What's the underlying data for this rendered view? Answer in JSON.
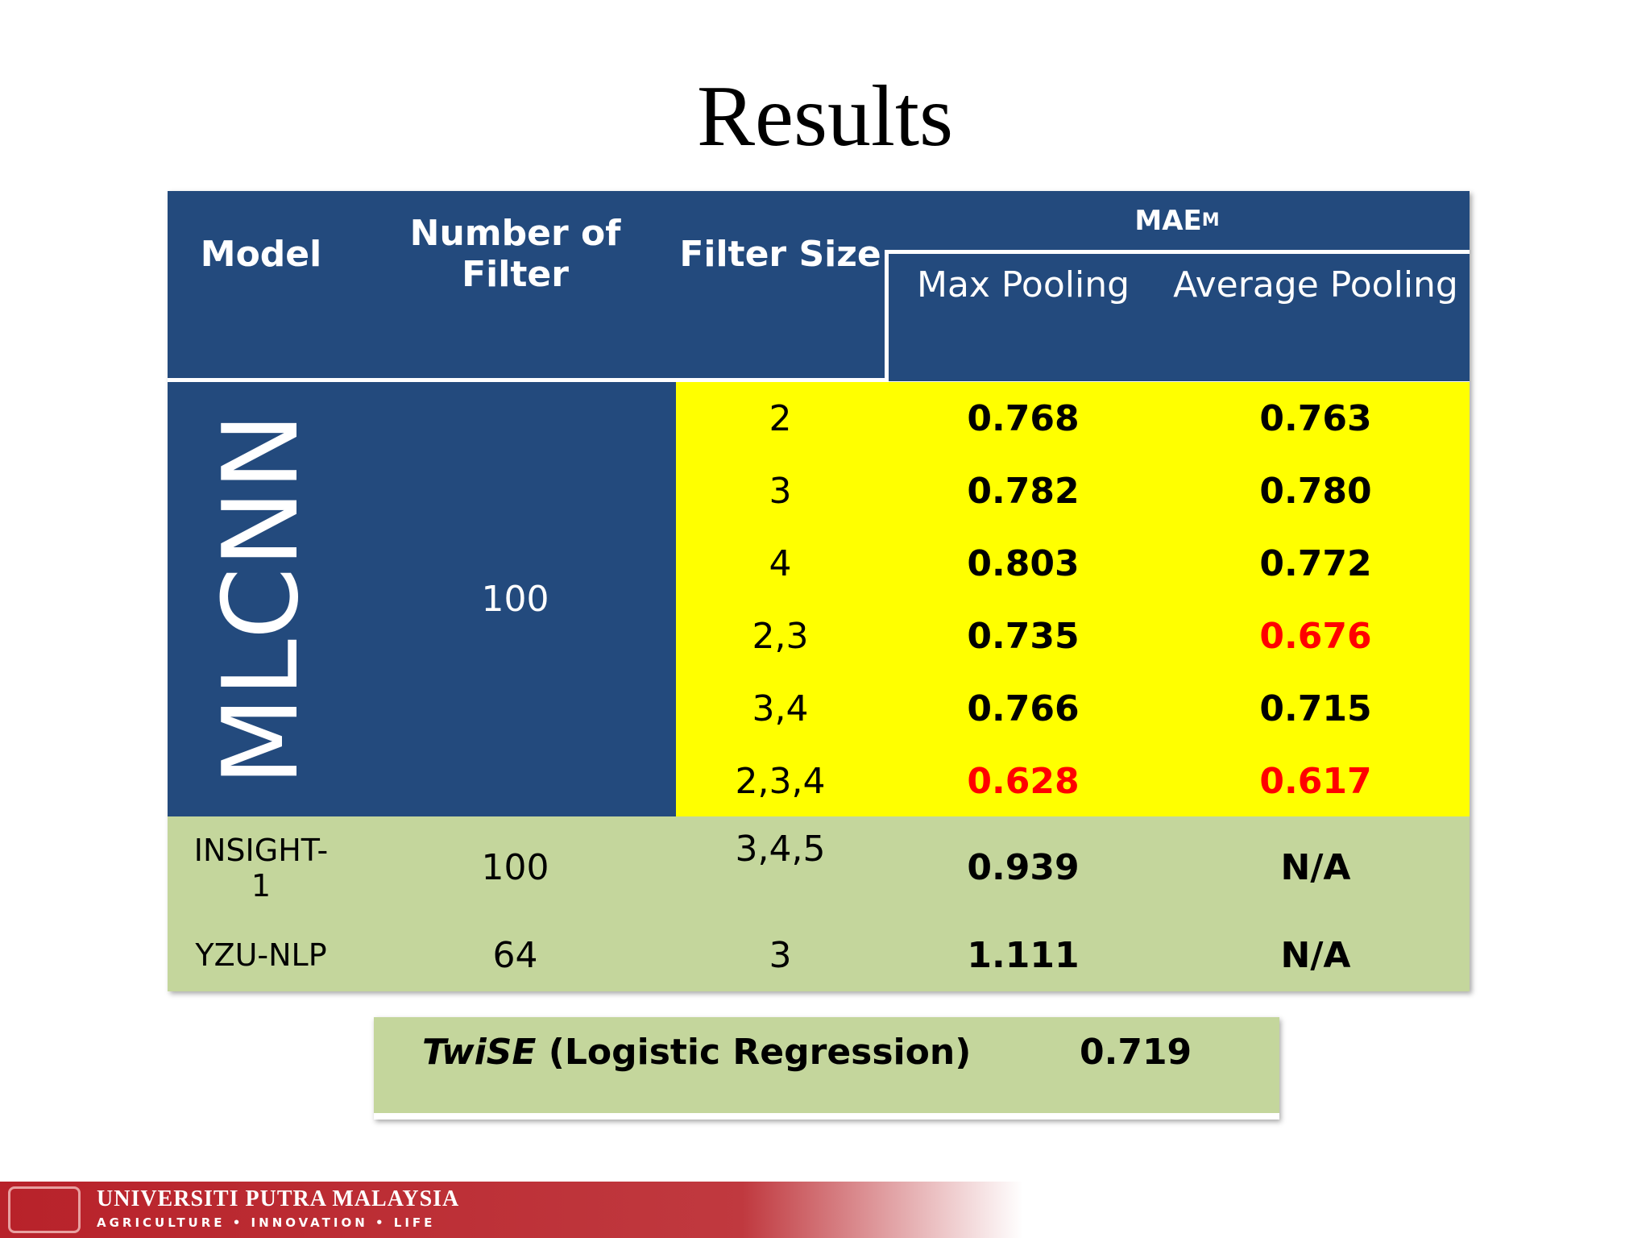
{
  "title": "Results",
  "table": {
    "header": {
      "model": "Model",
      "filters": "Number of Filter",
      "size": "Filter Size",
      "mae": "MAE",
      "mae_sup": "M",
      "max": "Max Pooling",
      "avg": "Average Pooling"
    },
    "mlcnn": {
      "label": "MLCNN",
      "filters": "100",
      "rows": [
        {
          "size": "2",
          "max": "0.768",
          "avg": "0.763",
          "max_red": false,
          "avg_red": false
        },
        {
          "size": "3",
          "max": "0.782",
          "avg": "0.780",
          "max_red": false,
          "avg_red": false
        },
        {
          "size": "4",
          "max": "0.803",
          "avg": "0.772",
          "max_red": false,
          "avg_red": false
        },
        {
          "size": "2,3",
          "max": "0.735",
          "avg": "0.676",
          "max_red": false,
          "avg_red": true
        },
        {
          "size": "3,4",
          "max": "0.766",
          "avg": "0.715",
          "max_red": false,
          "avg_red": false
        },
        {
          "size": "2,3,4",
          "max": "0.628",
          "avg": "0.617",
          "max_red": true,
          "avg_red": true
        }
      ]
    },
    "others": [
      {
        "model": "INSIGHT-1",
        "filters": "100",
        "size": "3,4,5",
        "max": "0.939",
        "avg": "N/A"
      },
      {
        "model": "YZU-NLP",
        "filters": "64",
        "size": "3",
        "max": "1.111",
        "avg": "N/A"
      }
    ]
  },
  "twise": {
    "name": "TwiSE",
    "method": " (Logistic Regression)",
    "value": "0.719"
  },
  "footer": {
    "university": "UNIVERSITI PUTRA MALAYSIA",
    "motto": "AGRICULTURE • INNOVATION • LIFE"
  },
  "red_color": "#ff0000"
}
